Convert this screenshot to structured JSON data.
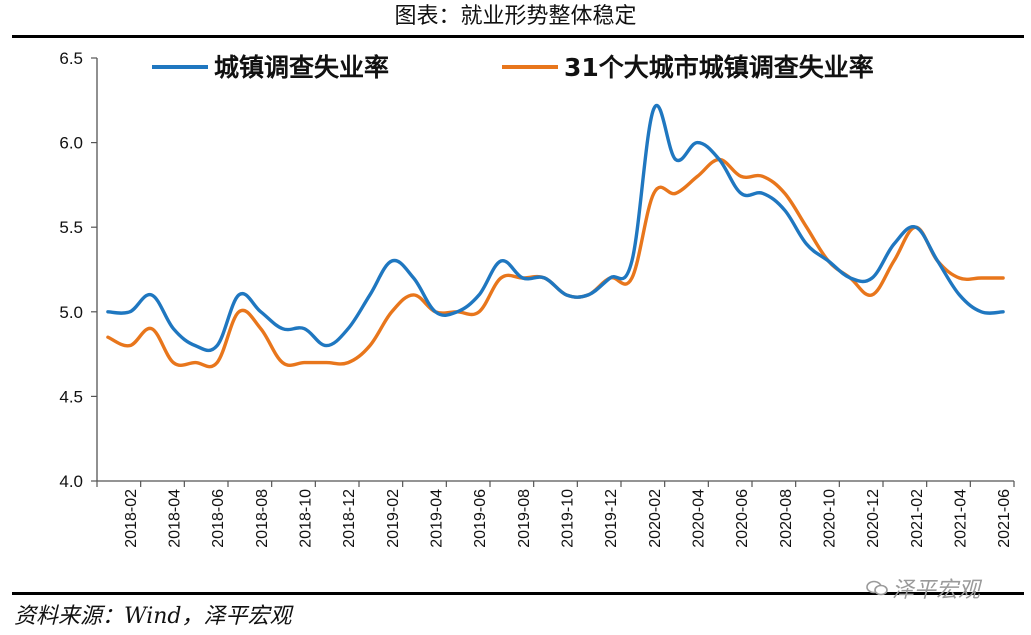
{
  "title": "图表：就业形势整体稳定",
  "source": "资料来源：Wind，泽平宏观",
  "watermark": "泽平宏观",
  "colors": {
    "series1": "#1F77C0",
    "series2": "#E8761C"
  },
  "chart_data": {
    "type": "line",
    "ylim": [
      4.0,
      6.5
    ],
    "yticks": [
      "4.0",
      "4.5",
      "5.0",
      "5.5",
      "6.0",
      "6.5"
    ],
    "xtick_labels": [
      "2018-02",
      "2018-04",
      "2018-06",
      "2018-08",
      "2018-10",
      "2018-12",
      "2019-02",
      "2019-04",
      "2019-06",
      "2019-08",
      "2019-10",
      "2019-12",
      "2020-02",
      "2020-04",
      "2020-06",
      "2020-08",
      "2020-10",
      "2020-12",
      "2021-02",
      "2021-04",
      "2021-06"
    ],
    "x": [
      "2018-01",
      "2018-02",
      "2018-03",
      "2018-04",
      "2018-05",
      "2018-06",
      "2018-07",
      "2018-08",
      "2018-09",
      "2018-10",
      "2018-11",
      "2018-12",
      "2019-01",
      "2019-02",
      "2019-03",
      "2019-04",
      "2019-05",
      "2019-06",
      "2019-07",
      "2019-08",
      "2019-09",
      "2019-10",
      "2019-11",
      "2019-12",
      "2020-01",
      "2020-02",
      "2020-03",
      "2020-04",
      "2020-05",
      "2020-06",
      "2020-07",
      "2020-08",
      "2020-09",
      "2020-10",
      "2020-11",
      "2020-12",
      "2021-01",
      "2021-02",
      "2021-03",
      "2021-04",
      "2021-05",
      "2021-06"
    ],
    "legend_position": "top",
    "grid": false,
    "series": [
      {
        "name": "城镇调查失业率",
        "values": [
          5.0,
          5.0,
          5.1,
          4.9,
          4.8,
          4.8,
          5.1,
          5.0,
          4.9,
          4.9,
          4.8,
          4.9,
          5.1,
          5.3,
          5.2,
          5.0,
          5.0,
          5.1,
          5.3,
          5.2,
          5.2,
          5.1,
          5.1,
          5.2,
          5.3,
          6.2,
          5.9,
          6.0,
          5.9,
          5.7,
          5.7,
          5.6,
          5.4,
          5.3,
          5.2,
          5.2,
          5.4,
          5.5,
          5.3,
          5.1,
          5.0,
          5.0
        ]
      },
      {
        "name": "31个大城市城镇调查失业率",
        "values": [
          4.85,
          4.8,
          4.9,
          4.7,
          4.7,
          4.7,
          5.0,
          4.9,
          4.7,
          4.7,
          4.7,
          4.7,
          4.8,
          5.0,
          5.1,
          5.0,
          5.0,
          5.0,
          5.2,
          5.2,
          5.2,
          5.1,
          5.1,
          5.2,
          5.2,
          5.7,
          5.7,
          5.8,
          5.9,
          5.8,
          5.8,
          5.7,
          5.5,
          5.3,
          5.2,
          5.1,
          5.3,
          5.5,
          5.3,
          5.2,
          5.2,
          5.2
        ]
      }
    ]
  }
}
